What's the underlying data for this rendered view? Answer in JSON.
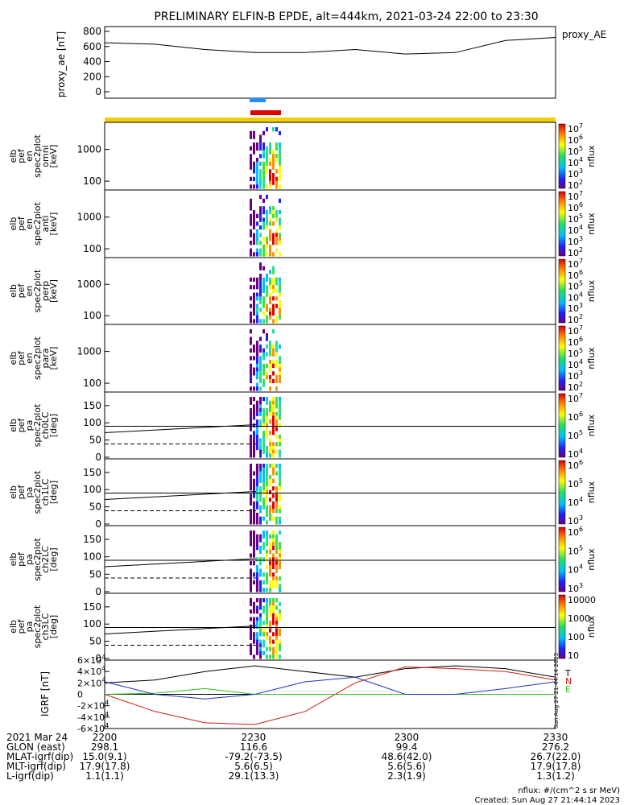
{
  "title": "PRELIMINARY ELFIN-B EPDE, alt=444km, 2021-03-24 22:00 to 23:30",
  "colors": {
    "black": "#000000",
    "blue": "#2030c0",
    "red": "#d01a10",
    "green": "#30c020",
    "yellow": "#f2d000",
    "red_bar": "#e00000",
    "blue_bar": "#1e90ff"
  },
  "footer": {
    "units": "nflux: #/(cm^2 s sr MeV)",
    "created": "Created: Sun Aug 27 21:44:14 2023",
    "side_stamp": "Sun Aug 27 21:44:14 2023"
  },
  "orbit_table": {
    "labels": [
      "2021 Mar 24",
      "GLON (east)",
      "MLAT-igrf(dip)",
      "MLT-igrf(dip)",
      "L-igrf(dip)"
    ],
    "columns": [
      {
        "time": "2200",
        "values": [
          "298.1",
          "15.0(9.1)",
          "17.9(17.8)",
          "1.1(1.1)"
        ]
      },
      {
        "time": "2230",
        "values": [
          "116.6",
          "-79.2(-73.5)",
          "5.6(6.5)",
          "29.1(13.3)"
        ]
      },
      {
        "time": "2300",
        "values": [
          "99.4",
          "48.6(42.0)",
          "5.6(5.6)",
          "2.3(1.9)"
        ]
      },
      {
        "time": "2330",
        "values": [
          "276.2",
          "26.7(22.0)",
          "17.9(17.8)",
          "1.3(1.2)"
        ]
      }
    ]
  },
  "spec_labels": [
    {
      "lines": [
        "elb",
        "pef",
        "en",
        "spec2plot",
        "omni",
        "[keV]"
      ],
      "cbar": [
        "10",
        "10",
        "10",
        "10",
        "10",
        "10"
      ],
      "cbar_exp": [
        "7",
        "6",
        "5",
        "4",
        "3",
        "2"
      ],
      "cbar_title": "nflux"
    },
    {
      "lines": [
        "elb",
        "pef",
        "en",
        "spec2plot",
        "anti",
        "[keV]"
      ],
      "cbar": [
        "10",
        "10",
        "10",
        "10",
        "10",
        "10"
      ],
      "cbar_exp": [
        "7",
        "6",
        "5",
        "4",
        "3",
        "2"
      ],
      "cbar_title": "nflux"
    },
    {
      "lines": [
        "elb",
        "pef",
        "en",
        "spec2plot",
        "perp",
        "[keV]"
      ],
      "cbar": [
        "10",
        "10",
        "10",
        "10",
        "10",
        "10"
      ],
      "cbar_exp": [
        "7",
        "6",
        "5",
        "4",
        "3",
        "2"
      ],
      "cbar_title": "nflux"
    },
    {
      "lines": [
        "elb",
        "pef",
        "en",
        "spec2plot",
        "para",
        "[keV]"
      ],
      "cbar": [
        "10",
        "10",
        "10",
        "10",
        "10",
        "10"
      ],
      "cbar_exp": [
        "7",
        "6",
        "5",
        "4",
        "3",
        "2"
      ],
      "cbar_title": "nflux"
    }
  ],
  "pa_labels": [
    {
      "lines": [
        "elb",
        "pef",
        "pa",
        "spec2plot",
        "ch0LC",
        "[deg]"
      ],
      "cbar": [
        "10",
        "10",
        "10",
        "10"
      ],
      "cbar_exp": [
        "7",
        "6",
        "5",
        "4"
      ],
      "cbar_title": "nflux"
    },
    {
      "lines": [
        "elb",
        "pef",
        "pa",
        "spec2plot",
        "ch1LC",
        "[deg]"
      ],
      "cbar": [
        "10",
        "10",
        "10",
        "10"
      ],
      "cbar_exp": [
        "6",
        "5",
        "4",
        "3"
      ],
      "cbar_title": "nflux"
    },
    {
      "lines": [
        "elb",
        "pef",
        "pa",
        "spec2plot",
        "ch2LC",
        "[deg]"
      ],
      "cbar": [
        "10",
        "10",
        "10",
        "10"
      ],
      "cbar_exp": [
        "6",
        "5",
        "4",
        "3"
      ],
      "cbar_title": "nflux"
    },
    {
      "lines": [
        "elb",
        "pef",
        "pa",
        "spec2plot",
        "ch3LC",
        "[deg]"
      ],
      "cbar": [
        "10000",
        "1000",
        "100",
        "10"
      ],
      "cbar_exp": [
        "",
        "",
        "",
        ""
      ],
      "cbar_title": "nflux"
    }
  ],
  "chart_data": [
    {
      "type": "line",
      "ylabel": "proxy_ae [nT]",
      "legend": "proxy_AE",
      "ylim": [
        0,
        800
      ],
      "yticks": [
        "0",
        "200",
        "400",
        "600",
        "800"
      ],
      "x": [
        "22:00",
        "22:10",
        "22:20",
        "22:30",
        "22:40",
        "22:50",
        "23:00",
        "23:10",
        "23:20",
        "23:30"
      ],
      "values": [
        650,
        630,
        560,
        520,
        520,
        560,
        500,
        520,
        680,
        720
      ]
    },
    {
      "type": "heatmap",
      "panels": [
        "omni",
        "anti",
        "perp",
        "para"
      ],
      "ylabel": "[keV]",
      "yticks": [
        "100",
        "1000"
      ],
      "ylog": true,
      "zlim": [
        100,
        10000000
      ]
    },
    {
      "type": "heatmap",
      "panels": [
        "ch0LC",
        "ch1LC",
        "ch2LC",
        "ch3LC"
      ],
      "ylabel": "[deg]",
      "ylim": [
        0,
        180
      ],
      "yticks": [
        "0",
        "50",
        "100",
        "150"
      ]
    },
    {
      "type": "line",
      "ylabel": "IGRF [nT]",
      "ylim": [
        -60000,
        60000
      ],
      "yticks": [
        "-6×10^4",
        "-4×10^4",
        "-2×10^4",
        "0",
        "2×10^4",
        "4×10^4",
        "6×10^4"
      ],
      "series": [
        {
          "name": "T",
          "color": "#000000",
          "x": [
            "22:00",
            "22:10",
            "22:20",
            "22:30",
            "22:40",
            "22:50",
            "23:00",
            "23:10",
            "23:20",
            "23:30"
          ],
          "values": [
            20000,
            25000,
            40000,
            50000,
            40000,
            30000,
            45000,
            50000,
            45000,
            30000
          ]
        },
        {
          "name": "N",
          "color": "#d01a10",
          "x": [
            "22:00",
            "22:10",
            "22:20",
            "22:30",
            "22:40",
            "22:50",
            "23:00",
            "23:10",
            "23:20",
            "23:30"
          ],
          "values": [
            0,
            -30000,
            -50000,
            -53000,
            -30000,
            20000,
            48000,
            45000,
            40000,
            25000
          ]
        },
        {
          "name": "E",
          "color": "#30c020",
          "x": [
            "22:00",
            "22:10",
            "22:20",
            "22:30",
            "22:40",
            "22:50",
            "23:00",
            "23:10",
            "23:20",
            "23:30"
          ],
          "values": [
            0,
            2000,
            10000,
            0,
            0,
            0,
            0,
            0,
            0,
            0
          ]
        }
      ]
    }
  ]
}
